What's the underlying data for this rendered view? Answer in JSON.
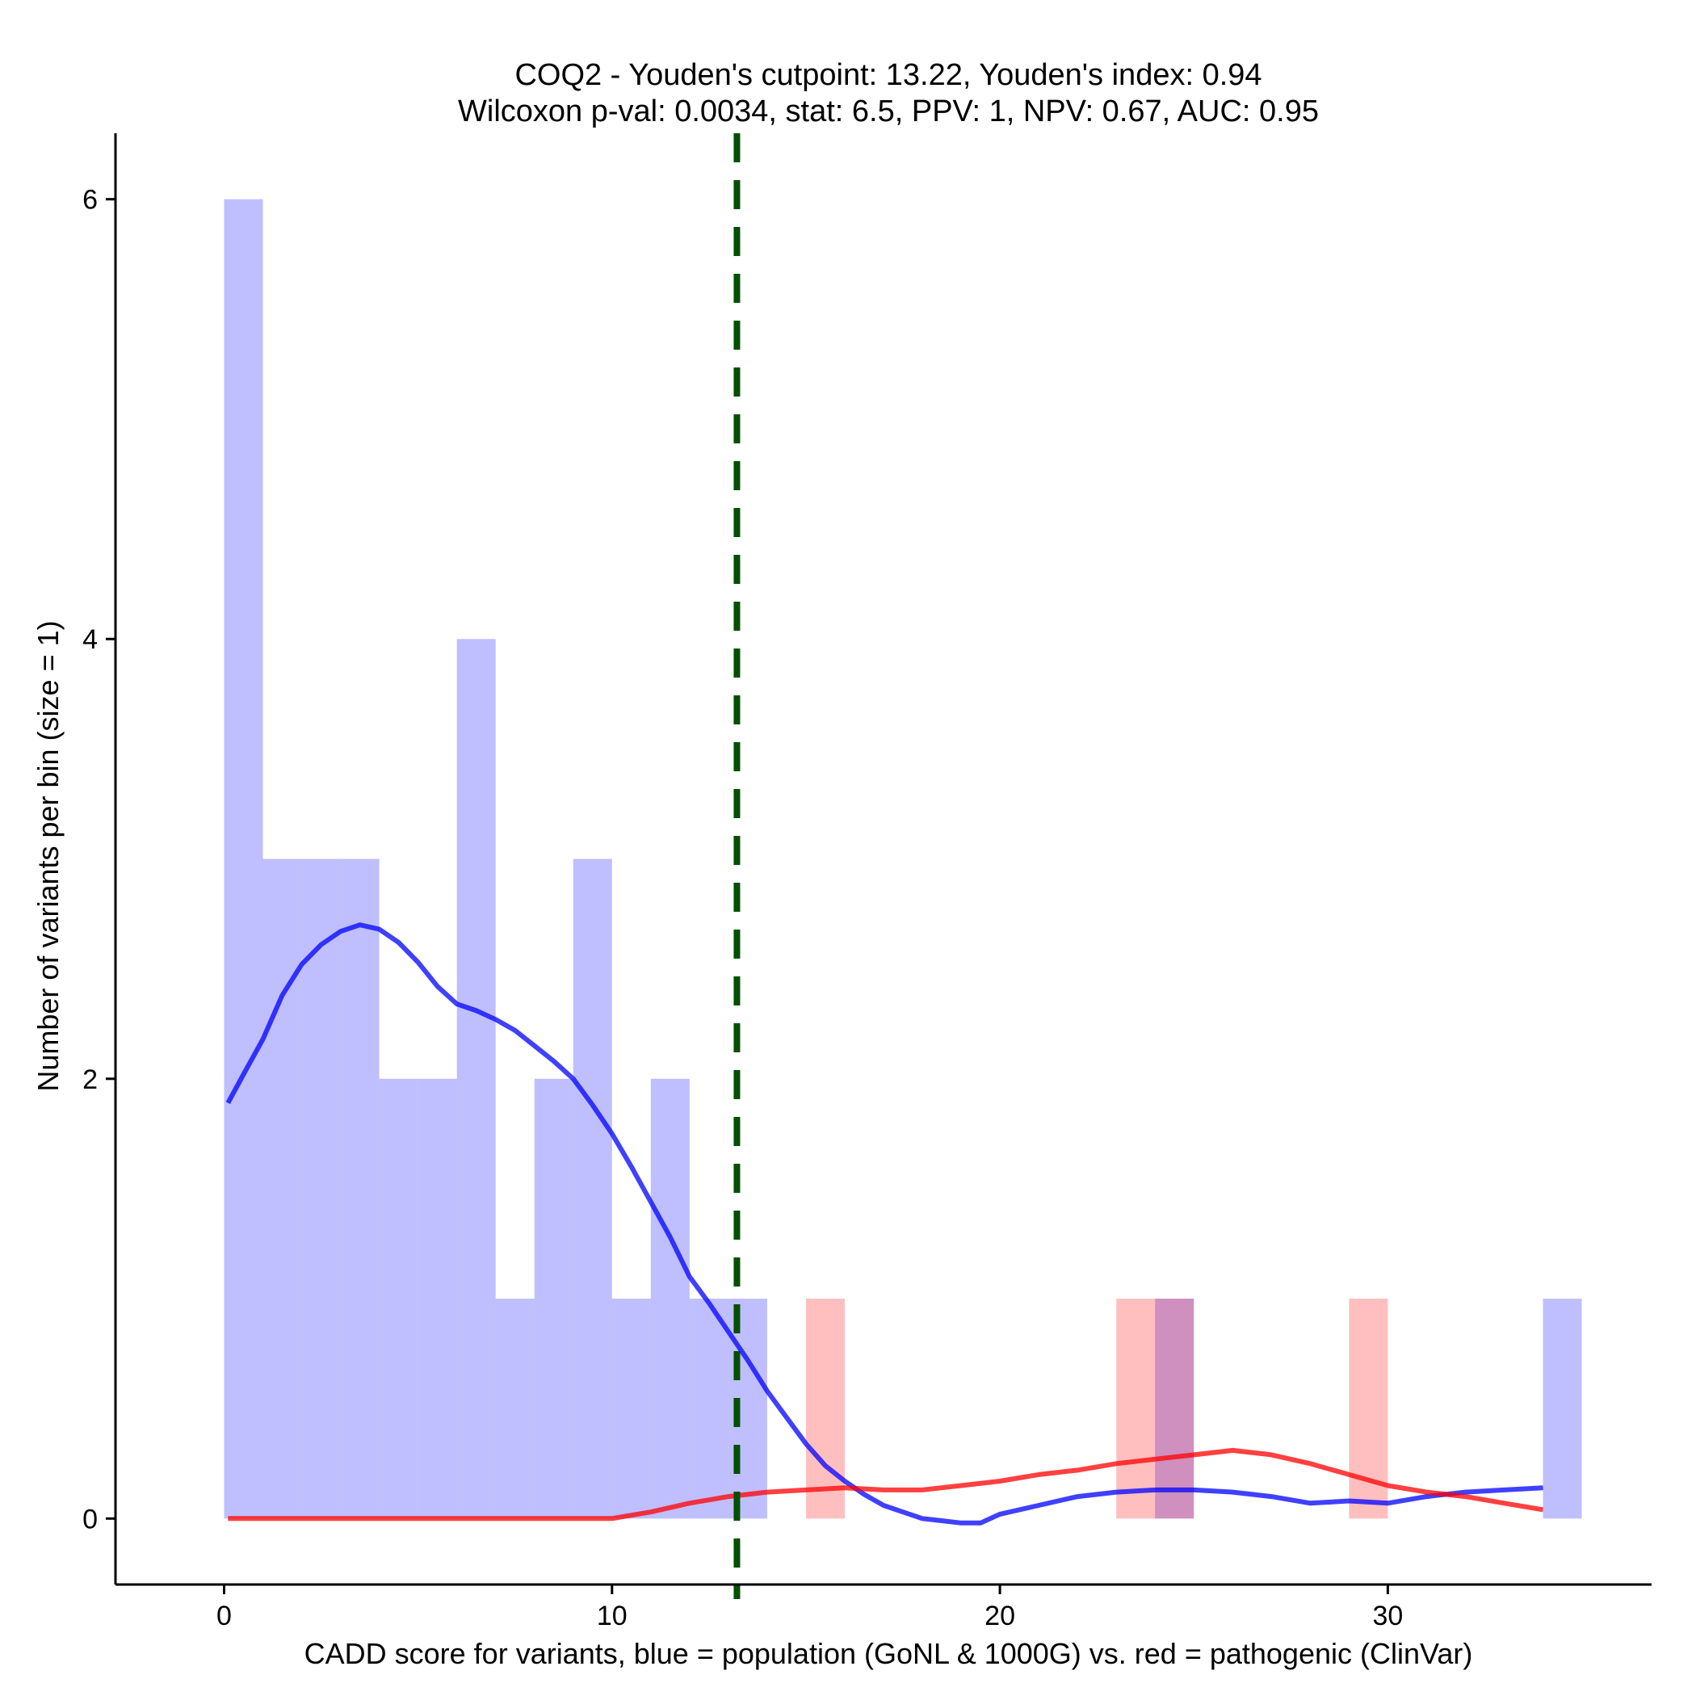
{
  "chart_data": {
    "type": "bar",
    "title": "COQ2 - Youden's cutpoint: 13.22, Youden's index: 0.94",
    "subtitle": "Wilcoxon p-val: 0.0034, stat: 6.5, PPV: 1, NPV: 0.67, AUC: 0.95",
    "xlabel": "CADD score for variants, blue = population (GoNL & 1000G) vs. red = pathogenic (ClinVar)",
    "ylabel": "Number of variants per bin (size = 1)",
    "xlim": [
      -2.8,
      36.8
    ],
    "ylim": [
      -0.3,
      6.3
    ],
    "x_ticks": [
      0,
      10,
      20,
      30
    ],
    "y_ticks": [
      0,
      2,
      4,
      6
    ],
    "bin_width": 1,
    "grid": false,
    "legend": "none",
    "series": [
      {
        "group": "population",
        "color": "#0000ff",
        "bins": [
          {
            "start": 0,
            "count": 6
          },
          {
            "start": 1,
            "count": 3
          },
          {
            "start": 2,
            "count": 3
          },
          {
            "start": 3,
            "count": 3
          },
          {
            "start": 4,
            "count": 2
          },
          {
            "start": 5,
            "count": 2
          },
          {
            "start": 6,
            "count": 4
          },
          {
            "start": 7,
            "count": 1
          },
          {
            "start": 8,
            "count": 2
          },
          {
            "start": 9,
            "count": 3
          },
          {
            "start": 10,
            "count": 1
          },
          {
            "start": 11,
            "count": 2
          },
          {
            "start": 12,
            "count": 1
          },
          {
            "start": 13,
            "count": 1
          },
          {
            "start": 24,
            "count": 1
          },
          {
            "start": 34,
            "count": 1
          }
        ],
        "density_curve": [
          [
            0.1,
            1.89
          ],
          [
            0.5,
            2.02
          ],
          [
            1,
            2.18
          ],
          [
            1.5,
            2.38
          ],
          [
            2,
            2.52
          ],
          [
            2.5,
            2.61
          ],
          [
            3,
            2.67
          ],
          [
            3.5,
            2.7
          ],
          [
            4,
            2.68
          ],
          [
            4.5,
            2.62
          ],
          [
            5,
            2.53
          ],
          [
            5.5,
            2.42
          ],
          [
            6,
            2.34
          ],
          [
            6.5,
            2.31
          ],
          [
            7,
            2.27
          ],
          [
            7.5,
            2.22
          ],
          [
            8,
            2.15
          ],
          [
            8.5,
            2.08
          ],
          [
            9,
            2.0
          ],
          [
            9.5,
            1.88
          ],
          [
            10,
            1.75
          ],
          [
            10.5,
            1.6
          ],
          [
            11,
            1.44
          ],
          [
            11.5,
            1.28
          ],
          [
            12,
            1.1
          ],
          [
            12.5,
            0.98
          ],
          [
            13,
            0.85
          ],
          [
            13.5,
            0.72
          ],
          [
            14,
            0.58
          ],
          [
            14.5,
            0.46
          ],
          [
            15,
            0.34
          ],
          [
            15.5,
            0.24
          ],
          [
            16,
            0.17
          ],
          [
            16.5,
            0.11
          ],
          [
            17,
            0.06
          ],
          [
            17.5,
            0.03
          ],
          [
            18,
            0.0
          ],
          [
            18.5,
            -0.01
          ],
          [
            19,
            -0.02
          ],
          [
            19.5,
            -0.02
          ],
          [
            20,
            0.02
          ],
          [
            21,
            0.06
          ],
          [
            22,
            0.1
          ],
          [
            23,
            0.12
          ],
          [
            24,
            0.13
          ],
          [
            25,
            0.13
          ],
          [
            26,
            0.12
          ],
          [
            27,
            0.1
          ],
          [
            28,
            0.07
          ],
          [
            29,
            0.08
          ],
          [
            30,
            0.07
          ],
          [
            31,
            0.1
          ],
          [
            32,
            0.12
          ],
          [
            33,
            0.13
          ],
          [
            34,
            0.14
          ]
        ]
      },
      {
        "group": "pathogenic",
        "color": "#ff0000",
        "bins": [
          {
            "start": 15,
            "count": 1
          },
          {
            "start": 23,
            "count": 1
          },
          {
            "start": 24,
            "count": 1
          },
          {
            "start": 29,
            "count": 1
          }
        ],
        "density_curve": [
          [
            0.1,
            0.0
          ],
          [
            2,
            0.0
          ],
          [
            4,
            0.0
          ],
          [
            6,
            0.0
          ],
          [
            8,
            0.0
          ],
          [
            10,
            0.0
          ],
          [
            11,
            0.03
          ],
          [
            12,
            0.07
          ],
          [
            13,
            0.1
          ],
          [
            14,
            0.12
          ],
          [
            15,
            0.13
          ],
          [
            16,
            0.14
          ],
          [
            17,
            0.13
          ],
          [
            18,
            0.13
          ],
          [
            19,
            0.15
          ],
          [
            20,
            0.17
          ],
          [
            21,
            0.2
          ],
          [
            22,
            0.22
          ],
          [
            23,
            0.25
          ],
          [
            24,
            0.27
          ],
          [
            25,
            0.29
          ],
          [
            26,
            0.31
          ],
          [
            27,
            0.29
          ],
          [
            28,
            0.25
          ],
          [
            29,
            0.2
          ],
          [
            30,
            0.15
          ],
          [
            31,
            0.12
          ],
          [
            32,
            0.1
          ],
          [
            33,
            0.07
          ],
          [
            34,
            0.04
          ]
        ]
      }
    ],
    "cutpoint": {
      "x": 13.22,
      "color": "#005000",
      "style": "dashed"
    }
  }
}
